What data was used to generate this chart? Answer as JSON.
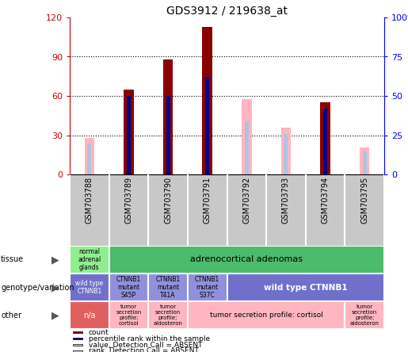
{
  "title": "GDS3912 / 219638_at",
  "samples": [
    "GSM703788",
    "GSM703789",
    "GSM703790",
    "GSM703791",
    "GSM703792",
    "GSM703793",
    "GSM703794",
    "GSM703795"
  ],
  "count_values": [
    0,
    65,
    88,
    113,
    0,
    0,
    55,
    0
  ],
  "percentile_values": [
    0,
    50,
    50,
    62,
    0,
    0,
    42,
    0
  ],
  "absent_value_values": [
    23,
    0,
    0,
    0,
    48,
    30,
    0,
    17
  ],
  "absent_rank_values": [
    19,
    0,
    0,
    0,
    34,
    26,
    0,
    15
  ],
  "ylim": [
    0,
    120
  ],
  "yticks_left": [
    0,
    30,
    60,
    90,
    120
  ],
  "yticks_right": [
    0,
    25,
    50,
    75,
    100
  ],
  "color_count": "#8B0000",
  "color_percentile": "#00008B",
  "color_absent_value": "#FFB6C1",
  "color_absent_rank": "#B0C4DE",
  "background_color": "#FFFFFF",
  "axes_label_color_left": "#CC0000",
  "axes_label_color_right": "#0000FF",
  "tissue_cells": [
    {
      "start": 0,
      "end": 1,
      "color": "#90EE90",
      "text": "normal\nadrenal\nglands",
      "fontsize": 5.5,
      "text_color": "black"
    },
    {
      "start": 1,
      "end": 8,
      "color": "#4CBB6B",
      "text": "adrenocortical adenomas",
      "fontsize": 8,
      "text_color": "black",
      "fontweight": "normal"
    }
  ],
  "geno_cells": [
    {
      "start": 0,
      "end": 1,
      "color": "#7070CC",
      "text": "wild type\nCTNNB1",
      "fontsize": 5.5,
      "text_color": "white"
    },
    {
      "start": 1,
      "end": 2,
      "color": "#9090DD",
      "text": "CTNNB1\nmutant\nS45P",
      "fontsize": 5.5,
      "text_color": "black"
    },
    {
      "start": 2,
      "end": 3,
      "color": "#9090DD",
      "text": "CTNNB1\nmutant\nT41A",
      "fontsize": 5.5,
      "text_color": "black"
    },
    {
      "start": 3,
      "end": 4,
      "color": "#9090DD",
      "text": "CTNNB1\nmutant\nS37C",
      "fontsize": 5.5,
      "text_color": "black"
    },
    {
      "start": 4,
      "end": 8,
      "color": "#7070CC",
      "text": "wild type CTNNB1",
      "fontsize": 7.5,
      "text_color": "white",
      "fontweight": "bold"
    }
  ],
  "other_cells": [
    {
      "start": 0,
      "end": 1,
      "color": "#E06060",
      "text": "n/a",
      "fontsize": 7,
      "text_color": "white"
    },
    {
      "start": 1,
      "end": 2,
      "color": "#FFB6C1",
      "text": "tumor\nsecretion\nprofile:\ncortisol",
      "fontsize": 5,
      "text_color": "black"
    },
    {
      "start": 2,
      "end": 3,
      "color": "#FFB6C1",
      "text": "tumor\nsecretion\nprofile:\naldosteron",
      "fontsize": 5,
      "text_color": "black"
    },
    {
      "start": 3,
      "end": 7,
      "color": "#FFB6C1",
      "text": "tumor secretion profile: cortisol",
      "fontsize": 6.5,
      "text_color": "black"
    },
    {
      "start": 7,
      "end": 8,
      "color": "#FFB6C1",
      "text": "tumor\nsecretion\nprofile:\naldosteron",
      "fontsize": 5,
      "text_color": "black"
    }
  ],
  "row_labels": [
    "tissue",
    "genotype/variation",
    "other"
  ],
  "legend_items": [
    {
      "color": "#8B0000",
      "label": "count"
    },
    {
      "color": "#00008B",
      "label": "percentile rank within the sample"
    },
    {
      "color": "#FFB6C1",
      "label": "value, Detection Call = ABSENT"
    },
    {
      "color": "#B0C4DE",
      "label": "rank, Detection Call = ABSENT"
    }
  ]
}
